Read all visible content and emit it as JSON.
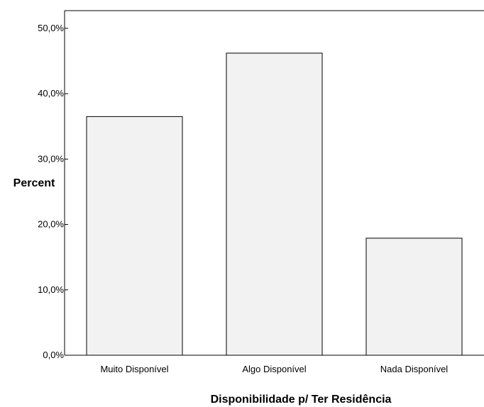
{
  "chart_data": {
    "type": "bar",
    "title": "",
    "xlabel": "Disponibilidade p/ Ter Residência",
    "ylabel": "Percent",
    "categories": [
      "Muito Disponível",
      "Algo Disponível",
      "Nada Disponível"
    ],
    "values": [
      36.5,
      46.2,
      17.9
    ],
    "ylim": [
      0,
      52.7
    ],
    "yticks": [
      0,
      10,
      20,
      30,
      40,
      50
    ],
    "ytick_labels": [
      "0,0%",
      "10,0%",
      "20,0%",
      "30,0%",
      "40,0%",
      "50,0%"
    ],
    "grid": false,
    "legend": "none",
    "colors": {
      "bar_fill": "#f2f2f2",
      "bar_stroke": "#000000",
      "axis": "#000000",
      "background": "#ffffff"
    }
  }
}
